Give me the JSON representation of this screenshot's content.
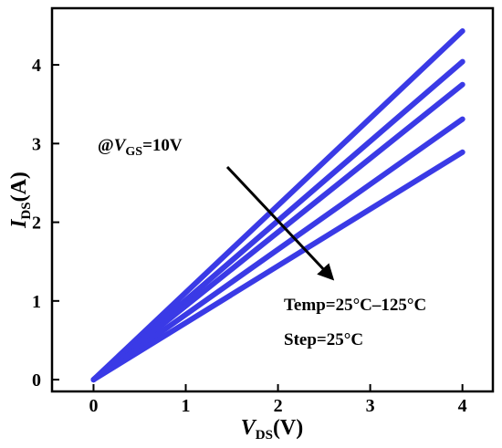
{
  "chart_data": {
    "type": "line",
    "x_axis": {
      "label_main": "V",
      "label_sub": "DS",
      "label_unit": "(V)",
      "range": [
        -0.45,
        4.33
      ],
      "ticks": [
        0,
        1,
        2,
        3,
        4
      ]
    },
    "y_axis": {
      "label_main": "I",
      "label_sub": "DS",
      "label_unit": "(A)",
      "range": [
        -0.15,
        4.72
      ],
      "ticks": [
        0,
        1,
        2,
        3,
        4
      ]
    },
    "grid": false,
    "series": [
      {
        "values": [
          [
            0,
            0
          ],
          [
            4,
            4.43
          ]
        ]
      },
      {
        "values": [
          [
            0,
            0
          ],
          [
            4,
            4.04
          ]
        ]
      },
      {
        "values": [
          [
            0,
            0
          ],
          [
            4,
            3.75
          ]
        ]
      },
      {
        "values": [
          [
            0,
            0
          ],
          [
            4,
            3.31
          ]
        ]
      },
      {
        "values": [
          [
            0,
            0
          ],
          [
            4,
            2.89
          ]
        ]
      }
    ],
    "line_color": "#3a3ae6",
    "annotations": {
      "vgs_prefix": "@",
      "vgs_main": "V",
      "vgs_sub": "GS",
      "vgs_value": "=10V",
      "temp": "Temp=25°C–125°C",
      "step": "Step=25°C"
    }
  }
}
